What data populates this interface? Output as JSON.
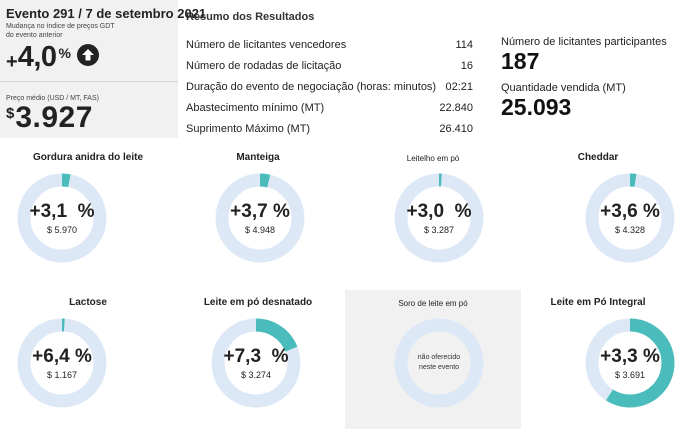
{
  "event": {
    "title": "Evento 291 / 7 de setembro 2021",
    "change_label": "Mudança no índice de preços GDT do evento anterior",
    "change_sign": "+",
    "change_value": "4,0",
    "change_unit": "%",
    "direction_icon": "arrow-up-icon",
    "price_label": "Preço médio (USD / MT, FAS)",
    "price_currency": "$",
    "price_value": "3.927"
  },
  "summary": {
    "title": "Resumo dos Resultados",
    "rows": [
      {
        "label": "Número de licitantes vencedores",
        "value": "114"
      },
      {
        "label": "Número de rodadas de licitação",
        "value": "16"
      },
      {
        "label": "Duração do evento de negociação (horas: minutos)",
        "value": "02:21"
      },
      {
        "label": "Abastecimento mínimo (MT)",
        "value": "22.840"
      },
      {
        "label": "Suprimento Máximo (MT)",
        "value": "26.410"
      }
    ]
  },
  "stats": {
    "participants_label": "Número de licitantes participantes",
    "participants_value": "187",
    "sold_label": "Quantidade vendida (MT)",
    "sold_value": "25.093"
  },
  "colors": {
    "ring_track": "#dde8f6",
    "ring_fill": "#4bbcbc",
    "panel_grey": "#f1f1f1"
  },
  "products": [
    {
      "name": "Gordura anidra do leite",
      "change": "+3,1  %",
      "price": "$ 5.970",
      "fill_percent": 3.1,
      "offered": true
    },
    {
      "name": "Manteiga",
      "change": "+3,7 %",
      "price": "$ 4.948",
      "fill_percent": 3.7,
      "offered": true
    },
    {
      "name": "Leitelho em pó",
      "change": "+3,0  %",
      "price": "$ 3.287",
      "fill_percent": 1.0,
      "offered": true
    },
    {
      "name": "Cheddar",
      "change": "+3,6 %",
      "price": "$ 4.328",
      "fill_percent": 2.3,
      "offered": true
    },
    {
      "name": "Lactose",
      "change": "+6,4 %",
      "price": "$ 1.167",
      "fill_percent": 1.0,
      "offered": true
    },
    {
      "name": "Leite em pó desnatado",
      "change": "+7,3  %",
      "price": "$ 3.274",
      "fill_percent": 19.0,
      "offered": true
    },
    {
      "name": "Soro de leite em pó",
      "change": "",
      "price": "",
      "fill_percent": 0,
      "offered": false,
      "not_offered_text": "não oferecido neste evento"
    },
    {
      "name": "Leite em Pó Integral",
      "change": "+3,3 %",
      "price": "$ 3.691",
      "fill_percent": 59.0,
      "offered": true
    }
  ]
}
